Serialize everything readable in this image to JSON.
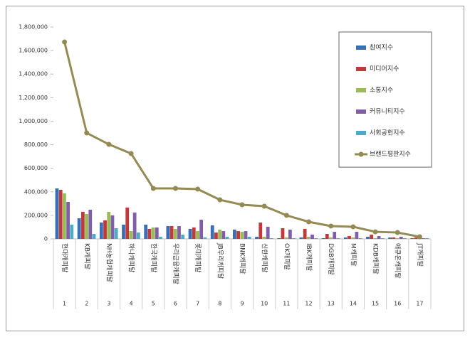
{
  "chart_data": {
    "type": "bar",
    "categories": [
      "현대캐피탈",
      "KB캐피탈",
      "NH농협캐피탈",
      "하나캐피탈",
      "한국캐피탈",
      "우리금융캐피탈",
      "롯데캐피탈",
      "JB우리캐피탈",
      "BNK캐피탈",
      "신한캐피탈",
      "OK캐피탈",
      "IBK캐피탈",
      "DGB캐피탈",
      "M캐피탈",
      "KDB캐피탈",
      "애큐온캐피탈",
      "JT캐피탈"
    ],
    "ranks": [
      1,
      2,
      3,
      4,
      5,
      6,
      7,
      8,
      9,
      10,
      11,
      12,
      13,
      14,
      15,
      16,
      17
    ],
    "series": [
      {
        "name": "참여지수",
        "color": "#3a6fb5",
        "values": [
          429000,
          175000,
          139000,
          121000,
          121000,
          109000,
          85000,
          115000,
          79000,
          18000,
          6000,
          12000,
          6000,
          12000,
          18000,
          12000,
          6000
        ]
      },
      {
        "name": "미디어지수",
        "color": "#c0393b",
        "values": [
          417000,
          230000,
          157000,
          266000,
          85000,
          109000,
          97000,
          54000,
          66000,
          139000,
          91000,
          85000,
          42000,
          24000,
          36000,
          12000,
          12000
        ]
      },
      {
        "name": "소통지수",
        "color": "#9bbb59",
        "values": [
          387000,
          211000,
          230000,
          66000,
          97000,
          85000,
          66000,
          79000,
          60000,
          18000,
          12000,
          18000,
          12000,
          12000,
          6000,
          6000,
          6000
        ]
      },
      {
        "name": "커뮤니티지수",
        "color": "#7f5fa8",
        "values": [
          314000,
          248000,
          200000,
          224000,
          97000,
          109000,
          163000,
          66000,
          66000,
          103000,
          79000,
          36000,
          60000,
          60000,
          24000,
          18000,
          6000
        ]
      },
      {
        "name": "사회공헌지수",
        "color": "#4bacc6",
        "values": [
          121000,
          42000,
          91000,
          54000,
          18000,
          36000,
          12000,
          18000,
          18000,
          6000,
          6000,
          6000,
          6000,
          6000,
          6000,
          6000,
          6000
        ]
      },
      {
        "name": "브랜드평판지수",
        "color": "#948a54",
        "type": "line",
        "values": [
          1673000,
          900000,
          803000,
          725000,
          429000,
          429000,
          423000,
          332000,
          290000,
          278000,
          200000,
          145000,
          109000,
          103000,
          60000,
          54000,
          18000
        ]
      }
    ],
    "ylim": [
      0,
      1800000
    ],
    "yticks": [
      0,
      {
        "value": 200000,
        "label": "200,000"
      },
      {
        "value": 400000,
        "label": "400,000"
      },
      {
        "value": 600000,
        "label": "600,000"
      },
      {
        "value": 800000,
        "label": "800,000"
      },
      {
        "value": 1000000,
        "label": "1,000,000"
      },
      {
        "value": 1200000,
        "label": "1,200,000"
      },
      {
        "value": 1400000,
        "label": "1,400,000"
      },
      {
        "value": 1600000,
        "label": "1,600,000"
      },
      {
        "value": 1800000,
        "label": "1,800,000"
      }
    ],
    "legend": "top-right"
  }
}
